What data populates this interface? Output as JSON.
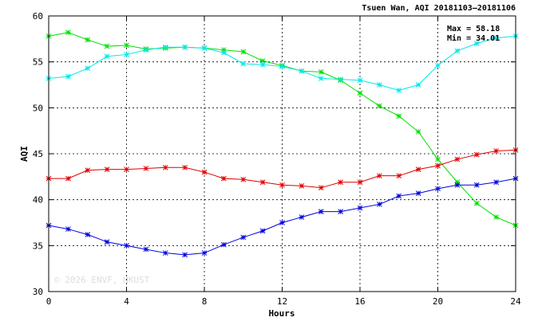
{
  "chart_data": {
    "type": "line",
    "title": "Tsuen Wan, AQI 20181103–20181106",
    "xlabel": "Hours",
    "ylabel": "AQI",
    "xlim": [
      0,
      24
    ],
    "ylim": [
      30,
      60
    ],
    "x_ticks": [
      0,
      4,
      8,
      12,
      16,
      20,
      24
    ],
    "y_ticks": [
      30,
      35,
      40,
      45,
      50,
      55,
      60
    ],
    "grid": true,
    "legend": "none",
    "stats": {
      "max": "Max = 58.18",
      "min": "Min = 34.01"
    },
    "watermark": "© 2026  ENVF, HKUST",
    "x": [
      0,
      1,
      2,
      3,
      4,
      5,
      6,
      7,
      8,
      9,
      10,
      11,
      12,
      13,
      14,
      15,
      16,
      17,
      18,
      19,
      20,
      21,
      22,
      23,
      24
    ],
    "series": [
      {
        "color": "#00e000",
        "values": [
          57.8,
          58.2,
          57.4,
          56.7,
          56.8,
          56.4,
          56.5,
          56.6,
          56.5,
          56.3,
          56.1,
          55.1,
          54.6,
          54.0,
          53.9,
          53.0,
          51.6,
          50.2,
          49.1,
          47.4,
          44.4,
          41.9,
          39.6,
          38.1,
          37.2
        ]
      },
      {
        "color": "#00e8e8",
        "values": [
          53.2,
          53.4,
          54.3,
          55.6,
          55.8,
          56.3,
          56.6,
          56.6,
          56.5,
          56.0,
          54.8,
          54.7,
          54.5,
          54.0,
          53.2,
          53.1,
          53.0,
          52.5,
          51.9,
          52.5,
          54.6,
          56.2,
          57.0,
          57.6,
          57.8
        ]
      },
      {
        "color": "#e00000",
        "values": [
          42.3,
          42.3,
          43.2,
          43.3,
          43.3,
          43.4,
          43.5,
          43.5,
          43.0,
          42.3,
          42.2,
          41.9,
          41.6,
          41.5,
          41.3,
          41.9,
          41.9,
          42.6,
          42.6,
          43.3,
          43.7,
          44.4,
          44.9,
          45.3,
          45.4
        ]
      },
      {
        "color": "#0000e0",
        "values": [
          37.2,
          36.8,
          36.2,
          35.4,
          35.0,
          34.6,
          34.2,
          34.0,
          34.2,
          35.1,
          35.9,
          36.6,
          37.5,
          38.1,
          38.7,
          38.7,
          39.1,
          39.5,
          40.4,
          40.7,
          41.2,
          41.6,
          41.6,
          41.9,
          42.3
        ]
      }
    ]
  }
}
